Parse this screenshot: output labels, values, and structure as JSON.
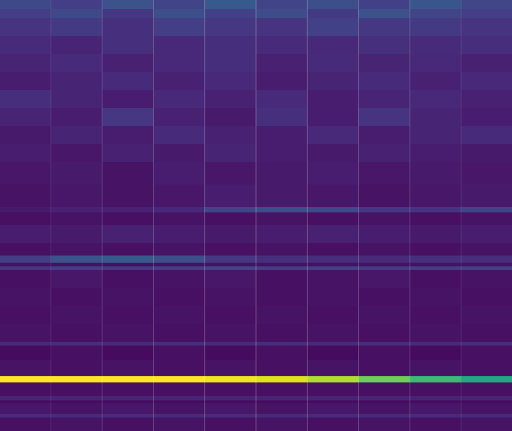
{
  "chart_data": {
    "type": "heatmap",
    "color": "viridis",
    "tick_labels": false,
    "xlim": [
      0,
      10
    ],
    "ylim": [
      0,
      479
    ],
    "zlim": [
      0,
      1
    ],
    "x_edges": [
      0,
      1,
      2,
      3,
      4,
      5,
      6,
      7,
      8,
      9,
      10
    ],
    "y_edges": [
      479,
      469,
      459,
      439,
      419,
      399,
      379,
      359,
      339,
      319,
      299,
      274,
      249,
      243,
      229,
      209,
      195,
      187,
      183,
      179,
      159,
      139,
      119,
      99,
      95,
      79,
      61,
      54,
      39,
      34,
      31,
      19,
      15,
      0
    ],
    "z": [
      [
        0.22,
        0.18,
        0.25,
        0.2,
        0.28,
        0.2,
        0.24,
        0.19,
        0.26,
        0.21
      ],
      [
        0.18,
        0.22,
        0.16,
        0.24,
        0.19,
        0.23,
        0.17,
        0.25,
        0.2,
        0.18
      ],
      [
        0.15,
        0.17,
        0.14,
        0.18,
        0.16,
        0.15,
        0.19,
        0.16,
        0.17,
        0.15
      ],
      [
        0.12,
        0.1,
        0.14,
        0.11,
        0.13,
        0.12,
        0.11,
        0.14,
        0.12,
        0.13
      ],
      [
        0.1,
        0.12,
        0.09,
        0.11,
        0.13,
        0.09,
        0.12,
        0.1,
        0.11,
        0.09
      ],
      [
        0.08,
        0.1,
        0.12,
        0.09,
        0.11,
        0.08,
        0.1,
        0.12,
        0.09,
        0.11
      ],
      [
        0.13,
        0.1,
        0.08,
        0.11,
        0.09,
        0.12,
        0.08,
        0.1,
        0.11,
        0.09
      ],
      [
        0.1,
        0.08,
        0.16,
        0.09,
        0.07,
        0.14,
        0.08,
        0.15,
        0.1,
        0.08
      ],
      [
        0.07,
        0.1,
        0.08,
        0.12,
        0.09,
        0.08,
        0.11,
        0.08,
        0.1,
        0.12
      ],
      [
        0.08,
        0.06,
        0.09,
        0.07,
        0.1,
        0.08,
        0.07,
        0.09,
        0.08,
        0.07
      ],
      [
        0.06,
        0.07,
        0.05,
        0.08,
        0.06,
        0.07,
        0.08,
        0.06,
        0.07,
        0.06
      ],
      [
        0.05,
        0.06,
        0.05,
        0.06,
        0.08,
        0.07,
        0.06,
        0.05,
        0.06,
        0.07
      ],
      [
        0.07,
        0.09,
        0.09,
        0.11,
        0.2,
        0.24,
        0.22,
        0.16,
        0.15,
        0.2
      ],
      [
        0.04,
        0.05,
        0.04,
        0.05,
        0.04,
        0.05,
        0.04,
        0.05,
        0.04,
        0.05
      ],
      [
        0.08,
        0.07,
        0.09,
        0.08,
        0.07,
        0.08,
        0.09,
        0.08,
        0.07,
        0.08
      ],
      [
        0.04,
        0.05,
        0.04,
        0.05,
        0.04,
        0.05,
        0.04,
        0.05,
        0.04,
        0.05
      ],
      [
        0.18,
        0.25,
        0.28,
        0.24,
        0.16,
        0.14,
        0.13,
        0.12,
        0.14,
        0.13
      ],
      [
        0.04,
        0.04,
        0.04,
        0.04,
        0.04,
        0.04,
        0.04,
        0.04,
        0.04,
        0.04
      ],
      [
        0.16,
        0.18,
        0.17,
        0.18,
        0.2,
        0.18,
        0.19,
        0.17,
        0.18,
        0.19
      ],
      [
        0.04,
        0.06,
        0.04,
        0.05,
        0.06,
        0.04,
        0.05,
        0.06,
        0.04,
        0.05
      ],
      [
        0.05,
        0.04,
        0.05,
        0.04,
        0.05,
        0.04,
        0.05,
        0.04,
        0.05,
        0.04
      ],
      [
        0.04,
        0.05,
        0.04,
        0.05,
        0.04,
        0.05,
        0.04,
        0.05,
        0.04,
        0.05
      ],
      [
        0.05,
        0.04,
        0.05,
        0.04,
        0.05,
        0.04,
        0.05,
        0.04,
        0.05,
        0.04
      ],
      [
        0.12,
        0.13,
        0.12,
        0.13,
        0.12,
        0.13,
        0.12,
        0.13,
        0.12,
        0.13
      ],
      [
        0.03,
        0.04,
        0.03,
        0.04,
        0.03,
        0.04,
        0.03,
        0.04,
        0.03,
        0.04
      ],
      [
        0.05,
        0.04,
        0.05,
        0.04,
        0.05,
        0.04,
        0.05,
        0.04,
        0.05,
        0.04
      ],
      [
        1.0,
        1.0,
        1.0,
        1.0,
        0.98,
        0.95,
        0.88,
        0.78,
        0.68,
        0.6
      ],
      [
        0.04,
        0.04,
        0.04,
        0.04,
        0.04,
        0.04,
        0.04,
        0.04,
        0.04,
        0.04
      ],
      [
        0.1,
        0.1,
        0.1,
        0.1,
        0.1,
        0.1,
        0.1,
        0.1,
        0.1,
        0.1
      ],
      [
        0.03,
        0.03,
        0.03,
        0.03,
        0.03,
        0.03,
        0.03,
        0.03,
        0.03,
        0.03
      ],
      [
        0.06,
        0.05,
        0.06,
        0.05,
        0.06,
        0.05,
        0.06,
        0.05,
        0.06,
        0.05
      ],
      [
        0.12,
        0.12,
        0.12,
        0.12,
        0.12,
        0.12,
        0.12,
        0.12,
        0.12,
        0.12
      ],
      [
        0.04,
        0.05,
        0.04,
        0.05,
        0.04,
        0.05,
        0.04,
        0.05,
        0.04,
        0.05
      ]
    ]
  }
}
